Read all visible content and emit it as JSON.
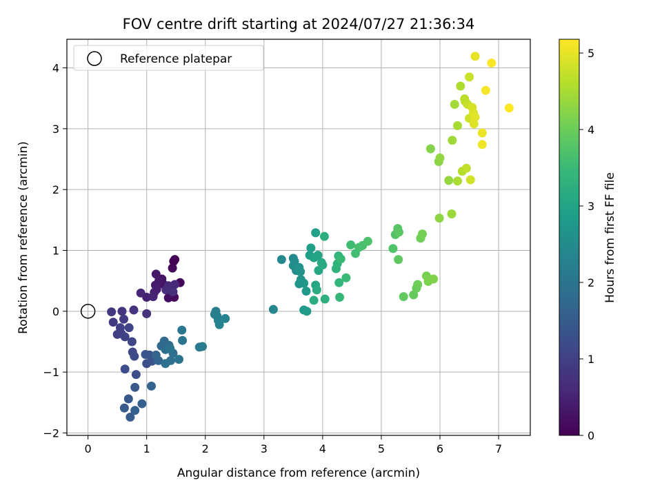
{
  "chart_data": {
    "type": "scatter",
    "title": "FOV centre drift starting at 2024/07/27 21:36:34",
    "xlabel": "Angular distance from reference (arcmin)",
    "ylabel": "Rotation from reference (arcmin)",
    "xlim": [
      -0.36,
      7.54
    ],
    "ylim": [
      -2.04,
      4.47
    ],
    "xticks": [
      0,
      1,
      2,
      3,
      4,
      5,
      6,
      7
    ],
    "xtick_labels": [
      "0",
      "1",
      "2",
      "3",
      "4",
      "5",
      "6",
      "7"
    ],
    "yticks": [
      -2,
      -1,
      0,
      1,
      2,
      3,
      4
    ],
    "ytick_labels": [
      "−2",
      "−1",
      "0",
      "1",
      "2",
      "3",
      "4"
    ],
    "grid": true,
    "legend": {
      "placement": "upper-left",
      "entries": [
        "Reference platepar"
      ]
    },
    "reference_point": {
      "x": 0,
      "y": 0,
      "style": "hollow-circle"
    },
    "colorbar": {
      "label": "Hours from first FF file",
      "range": [
        0,
        5.18
      ],
      "ticks": [
        0,
        1,
        2,
        3,
        4,
        5
      ],
      "tick_labels": [
        "0",
        "1",
        "2",
        "3",
        "4",
        "5"
      ],
      "colormap": "viridis"
    },
    "colormap_stops": [
      "#440154",
      "#482878",
      "#3e4989",
      "#31688e",
      "#26828e",
      "#1f9e89",
      "#35b779",
      "#6ece58",
      "#b5de2b",
      "#fde725"
    ],
    "series": [
      {
        "points": [
          [
            1.48,
            0.85
          ],
          [
            1.46,
            0.82
          ],
          [
            1.57,
            0.47
          ],
          [
            1.44,
            0.71
          ],
          [
            1.47,
            0.23
          ],
          [
            1.37,
            0.22
          ],
          [
            1.42,
            0.4
          ],
          [
            1.26,
            0.53
          ],
          [
            1.29,
            0.44
          ],
          [
            1.16,
            0.61
          ],
          [
            1.21,
            0.5
          ],
          [
            1.15,
            0.43
          ],
          [
            1.17,
            0.36
          ],
          [
            1.13,
            0.31
          ],
          [
            1.0,
            0.23
          ],
          [
            1.11,
            0.24
          ],
          [
            0.9,
            0.3
          ],
          [
            1.48,
            0.44
          ],
          [
            1.37,
            0.42
          ],
          [
            1.33,
            0.35
          ],
          [
            1.45,
            0.32
          ],
          [
            1.0,
            -0.04
          ],
          [
            0.78,
            0.02
          ],
          [
            0.58,
            0.0
          ],
          [
            0.4,
            -0.01
          ],
          [
            0.43,
            -0.18
          ],
          [
            0.61,
            -0.13
          ],
          [
            0.5,
            -0.38
          ],
          [
            0.57,
            -0.37
          ],
          [
            0.55,
            -0.27
          ],
          [
            0.63,
            -0.42
          ],
          [
            0.7,
            -0.27
          ],
          [
            0.75,
            -0.5
          ],
          [
            0.76,
            -0.67
          ],
          [
            0.79,
            -0.74
          ],
          [
            0.63,
            -0.95
          ],
          [
            0.82,
            -1.04
          ],
          [
            1.0,
            -0.86
          ],
          [
            1.05,
            -0.72
          ],
          [
            1.09,
            -0.82
          ],
          [
            0.98,
            -0.71
          ],
          [
            0.69,
            -1.44
          ],
          [
            0.8,
            -1.25
          ],
          [
            0.62,
            -1.59
          ],
          [
            0.72,
            -1.74
          ],
          [
            0.8,
            -1.63
          ],
          [
            0.92,
            -1.52
          ],
          [
            1.08,
            -1.23
          ],
          [
            1.2,
            -0.81
          ],
          [
            1.16,
            -0.72
          ],
          [
            1.25,
            -0.57
          ],
          [
            1.3,
            -0.49
          ],
          [
            1.38,
            -0.56
          ],
          [
            1.32,
            -0.63
          ],
          [
            1.45,
            -0.69
          ],
          [
            1.41,
            -0.81
          ],
          [
            1.32,
            -0.86
          ],
          [
            1.4,
            -0.61
          ],
          [
            1.55,
            -0.79
          ],
          [
            1.61,
            -0.48
          ],
          [
            1.6,
            -0.31
          ],
          [
            1.9,
            -0.59
          ],
          [
            1.95,
            -0.58
          ],
          [
            2.16,
            -0.05
          ],
          [
            2.18,
            0.0
          ],
          [
            2.2,
            -0.08
          ],
          [
            2.22,
            -0.15
          ],
          [
            2.24,
            -0.22
          ],
          [
            2.34,
            -0.12
          ],
          [
            3.16,
            0.03
          ],
          [
            3.3,
            0.85
          ],
          [
            3.5,
            0.87
          ],
          [
            3.52,
            0.82
          ],
          [
            3.5,
            0.75
          ],
          [
            3.55,
            0.67
          ],
          [
            3.6,
            0.72
          ],
          [
            3.62,
            0.65
          ],
          [
            3.63,
            0.52
          ],
          [
            3.6,
            0.45
          ],
          [
            3.68,
            0.46
          ],
          [
            3.72,
            0.33
          ],
          [
            3.68,
            0.02
          ],
          [
            3.73,
            0.0
          ],
          [
            3.78,
            0.92
          ],
          [
            3.8,
            1.04
          ],
          [
            3.88,
            1.29
          ],
          [
            3.85,
            0.88
          ],
          [
            3.92,
            0.92
          ],
          [
            3.88,
            0.43
          ],
          [
            3.93,
            0.67
          ],
          [
            3.98,
            0.8
          ],
          [
            4.0,
            0.76
          ],
          [
            3.9,
            0.35
          ],
          [
            3.85,
            0.18
          ],
          [
            4.03,
            1.23
          ],
          [
            4.04,
            0.2
          ],
          [
            4.23,
            0.7
          ],
          [
            4.25,
            0.78
          ],
          [
            4.27,
            0.91
          ],
          [
            4.28,
            0.47
          ],
          [
            4.29,
            0.23
          ],
          [
            4.31,
            0.86
          ],
          [
            4.4,
            0.55
          ],
          [
            4.48,
            1.09
          ],
          [
            4.56,
            0.95
          ],
          [
            4.62,
            1.05
          ],
          [
            4.68,
            1.08
          ],
          [
            4.77,
            1.15
          ],
          [
            5.2,
            1.03
          ],
          [
            5.24,
            1.26
          ],
          [
            5.28,
            1.36
          ],
          [
            5.3,
            1.3
          ],
          [
            5.29,
            0.85
          ],
          [
            5.38,
            0.24
          ],
          [
            5.55,
            0.27
          ],
          [
            5.6,
            0.38
          ],
          [
            5.62,
            0.44
          ],
          [
            5.67,
            1.2
          ],
          [
            5.7,
            1.27
          ],
          [
            5.77,
            0.58
          ],
          [
            5.8,
            0.49
          ],
          [
            5.89,
            0.53
          ],
          [
            5.84,
            2.67
          ],
          [
            5.98,
            2.46
          ],
          [
            5.99,
            1.53
          ],
          [
            6.0,
            2.52
          ],
          [
            6.15,
            2.15
          ],
          [
            6.2,
            1.6
          ],
          [
            6.21,
            2.81
          ],
          [
            6.25,
            3.4
          ],
          [
            6.3,
            3.05
          ],
          [
            6.3,
            2.14
          ],
          [
            6.35,
            3.7
          ],
          [
            6.38,
            2.3
          ],
          [
            6.42,
            3.49
          ],
          [
            6.43,
            3.45
          ],
          [
            6.45,
            2.35
          ],
          [
            6.47,
            3.4
          ],
          [
            6.5,
            3.85
          ],
          [
            6.5,
            3.17
          ],
          [
            6.52,
            2.16
          ],
          [
            6.55,
            3.35
          ],
          [
            6.57,
            3.26
          ],
          [
            6.58,
            3.08
          ],
          [
            6.6,
            3.19
          ],
          [
            6.6,
            4.19
          ],
          [
            6.72,
            2.93
          ],
          [
            6.72,
            2.74
          ],
          [
            6.78,
            3.63
          ],
          [
            6.88,
            4.08
          ],
          [
            7.18,
            3.34
          ]
        ]
      }
    ]
  }
}
